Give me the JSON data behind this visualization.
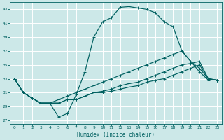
{
  "xlabel": "Humidex (Indice chaleur)",
  "bg_color": "#cce8e8",
  "grid_color": "#ffffff",
  "line_color": "#006060",
  "xlim": [
    -0.5,
    23.5
  ],
  "ylim": [
    26.5,
    44.0
  ],
  "yticks": [
    27,
    29,
    31,
    33,
    35,
    37,
    39,
    41,
    43
  ],
  "xticks": [
    0,
    1,
    2,
    3,
    4,
    5,
    6,
    7,
    8,
    9,
    10,
    11,
    12,
    13,
    14,
    15,
    16,
    17,
    18,
    19,
    20,
    21,
    22,
    23
  ],
  "line1_x": [
    0,
    1,
    2,
    3,
    4,
    5,
    6,
    7,
    8,
    9,
    10,
    11,
    12,
    13,
    14,
    15,
    16,
    17,
    18,
    19,
    20,
    21,
    22
  ],
  "line1_y": [
    33,
    31,
    30.2,
    29.5,
    29.5,
    27.5,
    28,
    30.7,
    34,
    39,
    41.2,
    41.8,
    43.3,
    43.4,
    43.2,
    43.0,
    42.5,
    41.2,
    40.5,
    37,
    35.5,
    34,
    32.8
  ],
  "line2_x": [
    0,
    1,
    2,
    3,
    4,
    5,
    6,
    7,
    8,
    9,
    10,
    11,
    12,
    13,
    14,
    15,
    16,
    17,
    18,
    19,
    20,
    21,
    22,
    23
  ],
  "line2_y": [
    33,
    31,
    30.2,
    29.5,
    29.5,
    30,
    30.5,
    31.0,
    31.5,
    32,
    32.5,
    33.0,
    33.5,
    34.0,
    34.5,
    35.0,
    35.5,
    36.0,
    36.5,
    37,
    35.5,
    34.5,
    33,
    32.8
  ],
  "line3_x": [
    0,
    1,
    2,
    3,
    4,
    5,
    6,
    7,
    8,
    9,
    10,
    11,
    12,
    13,
    14,
    15,
    16,
    17,
    18,
    19,
    20,
    21,
    22,
    23
  ],
  "line3_y": [
    33,
    31,
    30.2,
    29.5,
    29.5,
    29.5,
    30,
    30.0,
    30.5,
    31,
    31.2,
    31.5,
    32.0,
    32.3,
    32.5,
    33.0,
    33.5,
    34.0,
    34.5,
    35,
    35.2,
    35.5,
    33,
    32.8
  ],
  "line4_x": [
    0,
    1,
    2,
    3,
    4,
    5,
    6,
    7,
    8,
    9,
    10,
    11,
    12,
    13,
    14,
    15,
    16,
    17,
    18,
    19,
    20,
    21,
    22,
    23
  ],
  "line4_y": [
    33,
    31,
    30.2,
    29.5,
    29.5,
    29.5,
    30,
    30.0,
    30.5,
    31,
    31.0,
    31.2,
    31.5,
    31.8,
    32.0,
    32.5,
    32.8,
    33.0,
    33.5,
    34,
    34.5,
    35.0,
    33,
    32.8
  ]
}
